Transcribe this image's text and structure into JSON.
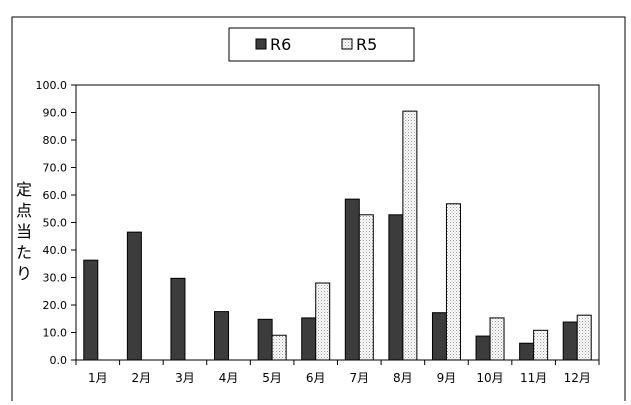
{
  "chart_data": {
    "type": "bar",
    "categories": [
      "1月",
      "2月",
      "3月",
      "4月",
      "5月",
      "6月",
      "7月",
      "8月",
      "9月",
      "10月",
      "11月",
      "12月"
    ],
    "series": [
      {
        "name": "R6",
        "values": [
          36.3,
          46.5,
          29.7,
          17.6,
          14.8,
          15.3,
          58.5,
          52.8,
          17.2,
          8.7,
          6.1,
          13.8
        ],
        "color": "#3c3c3c"
      },
      {
        "name": "R5",
        "values": [
          null,
          null,
          null,
          null,
          9.0,
          28.0,
          52.8,
          90.5,
          56.8,
          15.3,
          10.8,
          16.3
        ],
        "color": "#e4e4e4"
      }
    ],
    "ylabel": "定点当たり",
    "ylim": [
      0,
      100
    ],
    "yticks": [
      "0.0",
      "10.0",
      "20.0",
      "30.0",
      "40.0",
      "50.0",
      "60.0",
      "70.0",
      "80.0",
      "90.0",
      "100.0"
    ],
    "legend_position": "top-center",
    "grid": false
  }
}
